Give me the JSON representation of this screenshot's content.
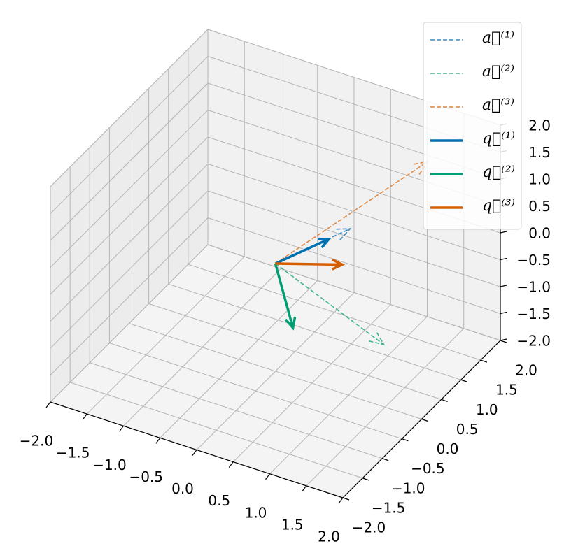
{
  "chart_data": {
    "type": "quiver3d",
    "origin": [
      0,
      0,
      0
    ],
    "xlim": [
      -2,
      2
    ],
    "ylim": [
      -2,
      2
    ],
    "zlim": [
      -2,
      2
    ],
    "xticks": [
      {
        "value": -2,
        "label": "−2.0"
      },
      {
        "value": -1.5,
        "label": "−1.5"
      },
      {
        "value": -1,
        "label": "−1.0"
      },
      {
        "value": -0.5,
        "label": "−0.5"
      },
      {
        "value": 0,
        "label": "0.0"
      },
      {
        "value": 0.5,
        "label": "0.5"
      },
      {
        "value": 1,
        "label": "1.0"
      },
      {
        "value": 1.5,
        "label": "1.5"
      },
      {
        "value": 2,
        "label": "2.0"
      }
    ],
    "yticks": [
      {
        "value": -2,
        "label": "−2.0"
      },
      {
        "value": -1.5,
        "label": "−1.5"
      },
      {
        "value": -1,
        "label": "−1.0"
      },
      {
        "value": -0.5,
        "label": "−0.5"
      },
      {
        "value": 0,
        "label": "0.0"
      },
      {
        "value": 0.5,
        "label": "0.5"
      },
      {
        "value": 1,
        "label": "1.0"
      },
      {
        "value": 1.5,
        "label": "1.5"
      },
      {
        "value": 2,
        "label": "2.0"
      }
    ],
    "zticks": [
      {
        "value": -2,
        "label": "−2.0"
      },
      {
        "value": -1.5,
        "label": "−1.5"
      },
      {
        "value": -1,
        "label": "−1.0"
      },
      {
        "value": -0.5,
        "label": "−0.5"
      },
      {
        "value": 0,
        "label": "0.0"
      },
      {
        "value": 0.5,
        "label": "0.5"
      },
      {
        "value": 1,
        "label": "1.0"
      },
      {
        "value": 1.5,
        "label": "1.5"
      },
      {
        "value": 2,
        "label": "2.0"
      }
    ],
    "grid": true,
    "legend": "upper right",
    "series": [
      {
        "name": "a⃗⁽¹⁾",
        "color": "#3a8cc4",
        "linestyle": "dashed",
        "vector": [
          0.55,
          0.88,
          0.25
        ]
      },
      {
        "name": "a⃗⁽²⁾",
        "color": "#3fb58f",
        "linestyle": "dashed",
        "vector": [
          1.2,
          0.53,
          -1.36
        ]
      },
      {
        "name": "a⃗⁽³⁾",
        "color": "#e0873f",
        "linestyle": "dashed",
        "vector": [
          1.6,
          0.9,
          1.95
        ]
      },
      {
        "name": "q⃗⁽¹⁾",
        "color": "#0072b2",
        "linestyle": "solid",
        "vector": [
          0.41,
          0.6,
          0.2
        ]
      },
      {
        "name": "q⃗⁽²⁾",
        "color": "#009e73",
        "linestyle": "solid",
        "vector": [
          0.3,
          -0.11,
          -0.98
        ]
      },
      {
        "name": "q⃗⁽³⁾",
        "color": "#d55e00",
        "linestyle": "solid",
        "vector": [
          0.7,
          0.4,
          0
        ]
      }
    ]
  }
}
